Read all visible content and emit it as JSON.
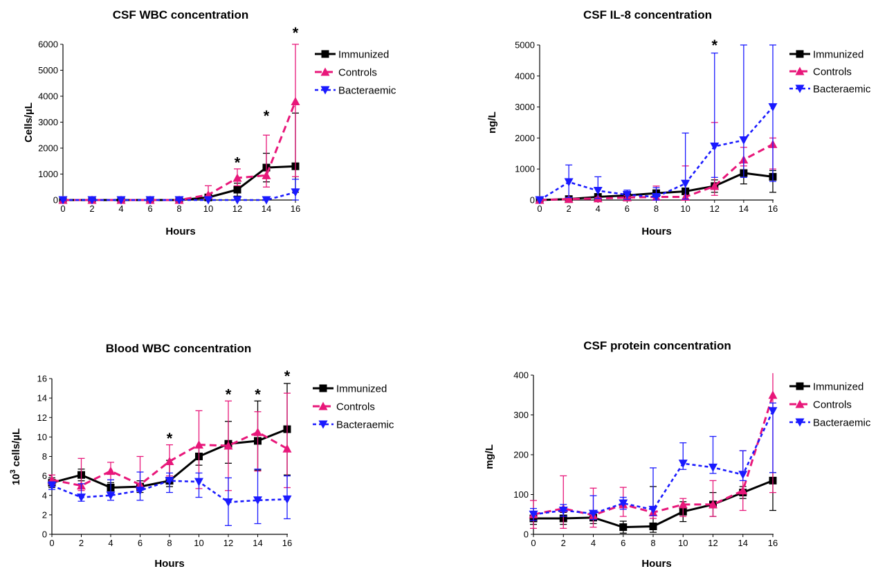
{
  "legend_markers": {
    "Immunized": "square",
    "Controls": "triangle-up",
    "Bacteraemic": "triangle-down"
  },
  "colors": {
    "Immunized": "#000000",
    "Controls": "#e8177a",
    "Bacteraemic": "#1a1aff"
  },
  "chart_data": [
    {
      "type": "line",
      "title": "CSF WBC concentration",
      "xlabel": "Hours",
      "ylabel": "Cells/µL",
      "x": [
        0,
        2,
        4,
        6,
        8,
        10,
        12,
        14,
        16
      ],
      "xticks": [
        "0",
        "2",
        "4",
        "6",
        "8",
        "10",
        "12",
        "14",
        "16"
      ],
      "xlim": [
        0,
        16
      ],
      "ylim": [
        0,
        6000
      ],
      "yticks": [
        "0",
        "1000",
        "2000",
        "3000",
        "4000",
        "5000",
        "6000"
      ],
      "legend_position": "top-right",
      "series": [
        {
          "name": "Immunized",
          "values": [
            0,
            0,
            0,
            0,
            0,
            100,
            400,
            1250,
            1300
          ],
          "err_up": [
            0,
            0,
            0,
            0,
            0,
            80,
            250,
            550,
            2050
          ],
          "err_down": [
            0,
            0,
            0,
            0,
            0,
            80,
            250,
            550,
            1000
          ]
        },
        {
          "name": "Controls",
          "values": [
            0,
            0,
            0,
            0,
            0,
            200,
            850,
            950,
            3800
          ],
          "err_up": [
            0,
            0,
            0,
            0,
            0,
            350,
            350,
            1550,
            2200
          ],
          "err_down": [
            0,
            0,
            0,
            0,
            0,
            150,
            300,
            450,
            2900
          ]
        },
        {
          "name": "Bacteraemic",
          "values": [
            0,
            0,
            0,
            0,
            0,
            0,
            0,
            0,
            300
          ],
          "err_up": [
            0,
            0,
            0,
            0,
            0,
            0,
            0,
            0,
            500
          ],
          "err_down": [
            0,
            0,
            0,
            0,
            0,
            0,
            0,
            0,
            300
          ]
        }
      ],
      "annotations": [
        {
          "x": 12,
          "y": 1450,
          "text": "*"
        },
        {
          "x": 14,
          "y": 3250,
          "text": "*"
        },
        {
          "x": 16,
          "y": 6450,
          "text": "*"
        }
      ]
    },
    {
      "type": "line",
      "title": "CSF IL-8 concentration",
      "xlabel": "Hours",
      "ylabel": "ng/L",
      "x": [
        0,
        2,
        4,
        6,
        8,
        10,
        12,
        14,
        16
      ],
      "xticks": [
        "0",
        "2",
        "4",
        "6",
        "8",
        "10",
        "12",
        "14",
        "16"
      ],
      "xlim": [
        0,
        16
      ],
      "ylim": [
        0,
        5000
      ],
      "yticks": [
        "0",
        "1000",
        "2000",
        "3000",
        "4000",
        "5000"
      ],
      "legend_position": "top-right",
      "series": [
        {
          "name": "Immunized",
          "values": [
            0,
            30,
            100,
            150,
            220,
            280,
            450,
            870,
            750
          ],
          "err_up": [
            0,
            20,
            40,
            60,
            80,
            100,
            200,
            350,
            200
          ],
          "err_down": [
            0,
            20,
            40,
            60,
            80,
            100,
            200,
            350,
            500
          ]
        },
        {
          "name": "Controls",
          "values": [
            0,
            30,
            50,
            80,
            100,
            100,
            450,
            1300,
            1800
          ],
          "err_up": [
            0,
            20,
            30,
            60,
            350,
            1000,
            2050,
            400,
            200
          ],
          "err_down": [
            0,
            20,
            30,
            60,
            80,
            80,
            300,
            200,
            800
          ]
        },
        {
          "name": "Bacteraemic",
          "values": [
            0,
            580,
            300,
            170,
            100,
            530,
            1730,
            1930,
            3000
          ],
          "err_up": [
            0,
            550,
            450,
            150,
            300,
            1630,
            3010,
            3070,
            2000
          ],
          "err_down": [
            0,
            500,
            250,
            150,
            100,
            500,
            1000,
            1200,
            2400
          ]
        }
      ],
      "annotations": [
        {
          "x": 12,
          "y": 5000,
          "text": "*"
        }
      ]
    },
    {
      "type": "line",
      "title": "Blood WBC concentration",
      "xlabel": "Hours",
      "ylabel": "10³ cells/µL",
      "ylabel_base": "10",
      "ylabel_sup": "3",
      "ylabel_rest": " cells/µL",
      "x": [
        0,
        2,
        4,
        6,
        8,
        10,
        12,
        14,
        16
      ],
      "xticks": [
        "0",
        "2",
        "4",
        "6",
        "8",
        "10",
        "12",
        "14",
        "16"
      ],
      "xlim": [
        0,
        16
      ],
      "ylim": [
        0,
        16
      ],
      "yticks": [
        "0",
        "2",
        "4",
        "6",
        "8",
        "10",
        "12",
        "14",
        "16"
      ],
      "legend_position": "top-right",
      "series": [
        {
          "name": "Immunized",
          "values": [
            5.3,
            6.1,
            4.8,
            4.9,
            5.5,
            8.0,
            9.3,
            9.6,
            10.8
          ],
          "err_up": [
            0.5,
            0.6,
            0.5,
            0.6,
            2.1,
            0.9,
            2.3,
            4.1,
            4.7
          ],
          "err_down": [
            0.5,
            0.6,
            0.5,
            0.6,
            0.6,
            0.9,
            2.0,
            3.0,
            4.7
          ]
        },
        {
          "name": "Controls",
          "values": [
            5.6,
            5.0,
            6.5,
            5.1,
            7.5,
            9.2,
            9.1,
            10.5,
            8.8
          ],
          "err_up": [
            0.5,
            2.8,
            0.9,
            2.9,
            1.7,
            3.5,
            4.6,
            2.1,
            5.7
          ],
          "err_down": [
            0.5,
            0.5,
            0.9,
            0.5,
            1.5,
            4.5,
            4.6,
            4.0,
            4.0
          ]
        },
        {
          "name": "Bacteraemic",
          "values": [
            5.0,
            3.8,
            4.0,
            4.5,
            5.5,
            5.4,
            3.3,
            3.5,
            3.6
          ],
          "err_up": [
            0.4,
            1.4,
            1.6,
            1.9,
            0.8,
            0.9,
            2.5,
            3.2,
            2.4
          ],
          "err_down": [
            0.4,
            0.4,
            0.5,
            1.0,
            1.2,
            1.6,
            2.4,
            2.4,
            2.0
          ]
        }
      ],
      "annotations": [
        {
          "x": 8,
          "y": 9.9,
          "text": "*"
        },
        {
          "x": 12,
          "y": 14.4,
          "text": "*"
        },
        {
          "x": 14,
          "y": 14.4,
          "text": "*"
        },
        {
          "x": 16,
          "y": 16.3,
          "text": "*"
        }
      ]
    },
    {
      "type": "line",
      "title": "CSF protein concentration",
      "xlabel": "Hours",
      "ylabel": "mg/L",
      "x": [
        0,
        2,
        4,
        6,
        8,
        10,
        12,
        14,
        16
      ],
      "xticks": [
        "0",
        "2",
        "4",
        "6",
        "8",
        "10",
        "12",
        "14",
        "16"
      ],
      "xlim": [
        0,
        16
      ],
      "ylim": [
        0,
        400
      ],
      "yticks": [
        "0",
        "100",
        "200",
        "300",
        "400"
      ],
      "legend_position": "top-right",
      "series": [
        {
          "name": "Immunized",
          "values": [
            40,
            40,
            42,
            18,
            20,
            57,
            75,
            105,
            135
          ],
          "err_up": [
            15,
            15,
            15,
            15,
            100,
            25,
            30,
            15,
            20
          ],
          "err_down": [
            15,
            15,
            15,
            15,
            15,
            25,
            30,
            15,
            75
          ]
        },
        {
          "name": "Controls",
          "values": [
            50,
            65,
            48,
            75,
            55,
            75,
            75,
            110,
            350
          ],
          "err_up": [
            35,
            82,
            68,
            43,
            15,
            15,
            60,
            100,
            55
          ],
          "err_down": [
            35,
            50,
            30,
            30,
            15,
            30,
            30,
            50,
            245
          ]
        },
        {
          "name": "Bacteraemic",
          "values": [
            50,
            60,
            52,
            78,
            62,
            178,
            168,
            150,
            310
          ],
          "err_up": [
            15,
            15,
            45,
            15,
            105,
            52,
            78,
            60,
            20
          ],
          "err_down": [
            15,
            15,
            15,
            15,
            15,
            15,
            15,
            15,
            155
          ]
        }
      ],
      "annotations": []
    }
  ]
}
